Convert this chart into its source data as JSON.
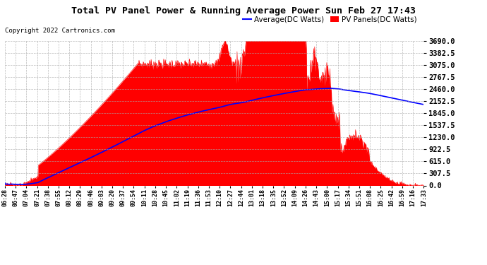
{
  "title": "Total PV Panel Power & Running Average Power Sun Feb 27 17:43",
  "copyright": "Copyright 2022 Cartronics.com",
  "legend_average": "Average(DC Watts)",
  "legend_pv": "PV Panels(DC Watts)",
  "ylabel_right_values": [
    0.0,
    307.5,
    615.0,
    922.5,
    1230.0,
    1537.5,
    1845.0,
    2152.5,
    2460.0,
    2767.5,
    3075.0,
    3382.5,
    3690.0
  ],
  "ymax": 3690.0,
  "ymin": 0.0,
  "bg_color": "#ffffff",
  "plot_bg_color": "#ffffff",
  "grid_color": "#aaaaaa",
  "pv_fill_color": "#ff0000",
  "avg_line_color": "#0000ff",
  "title_color": "#000000",
  "copyright_color": "#000000",
  "xtick_labels": [
    "06:28",
    "06:47",
    "07:04",
    "07:21",
    "07:38",
    "07:55",
    "08:12",
    "08:29",
    "08:46",
    "09:03",
    "09:20",
    "09:37",
    "09:54",
    "10:11",
    "10:28",
    "10:45",
    "11:02",
    "11:19",
    "11:36",
    "11:53",
    "12:10",
    "12:27",
    "12:44",
    "13:01",
    "13:18",
    "13:35",
    "13:52",
    "14:09",
    "14:26",
    "14:43",
    "15:00",
    "15:17",
    "15:34",
    "15:51",
    "16:08",
    "16:25",
    "16:42",
    "16:59",
    "17:16",
    "17:33"
  ],
  "n_points": 800
}
